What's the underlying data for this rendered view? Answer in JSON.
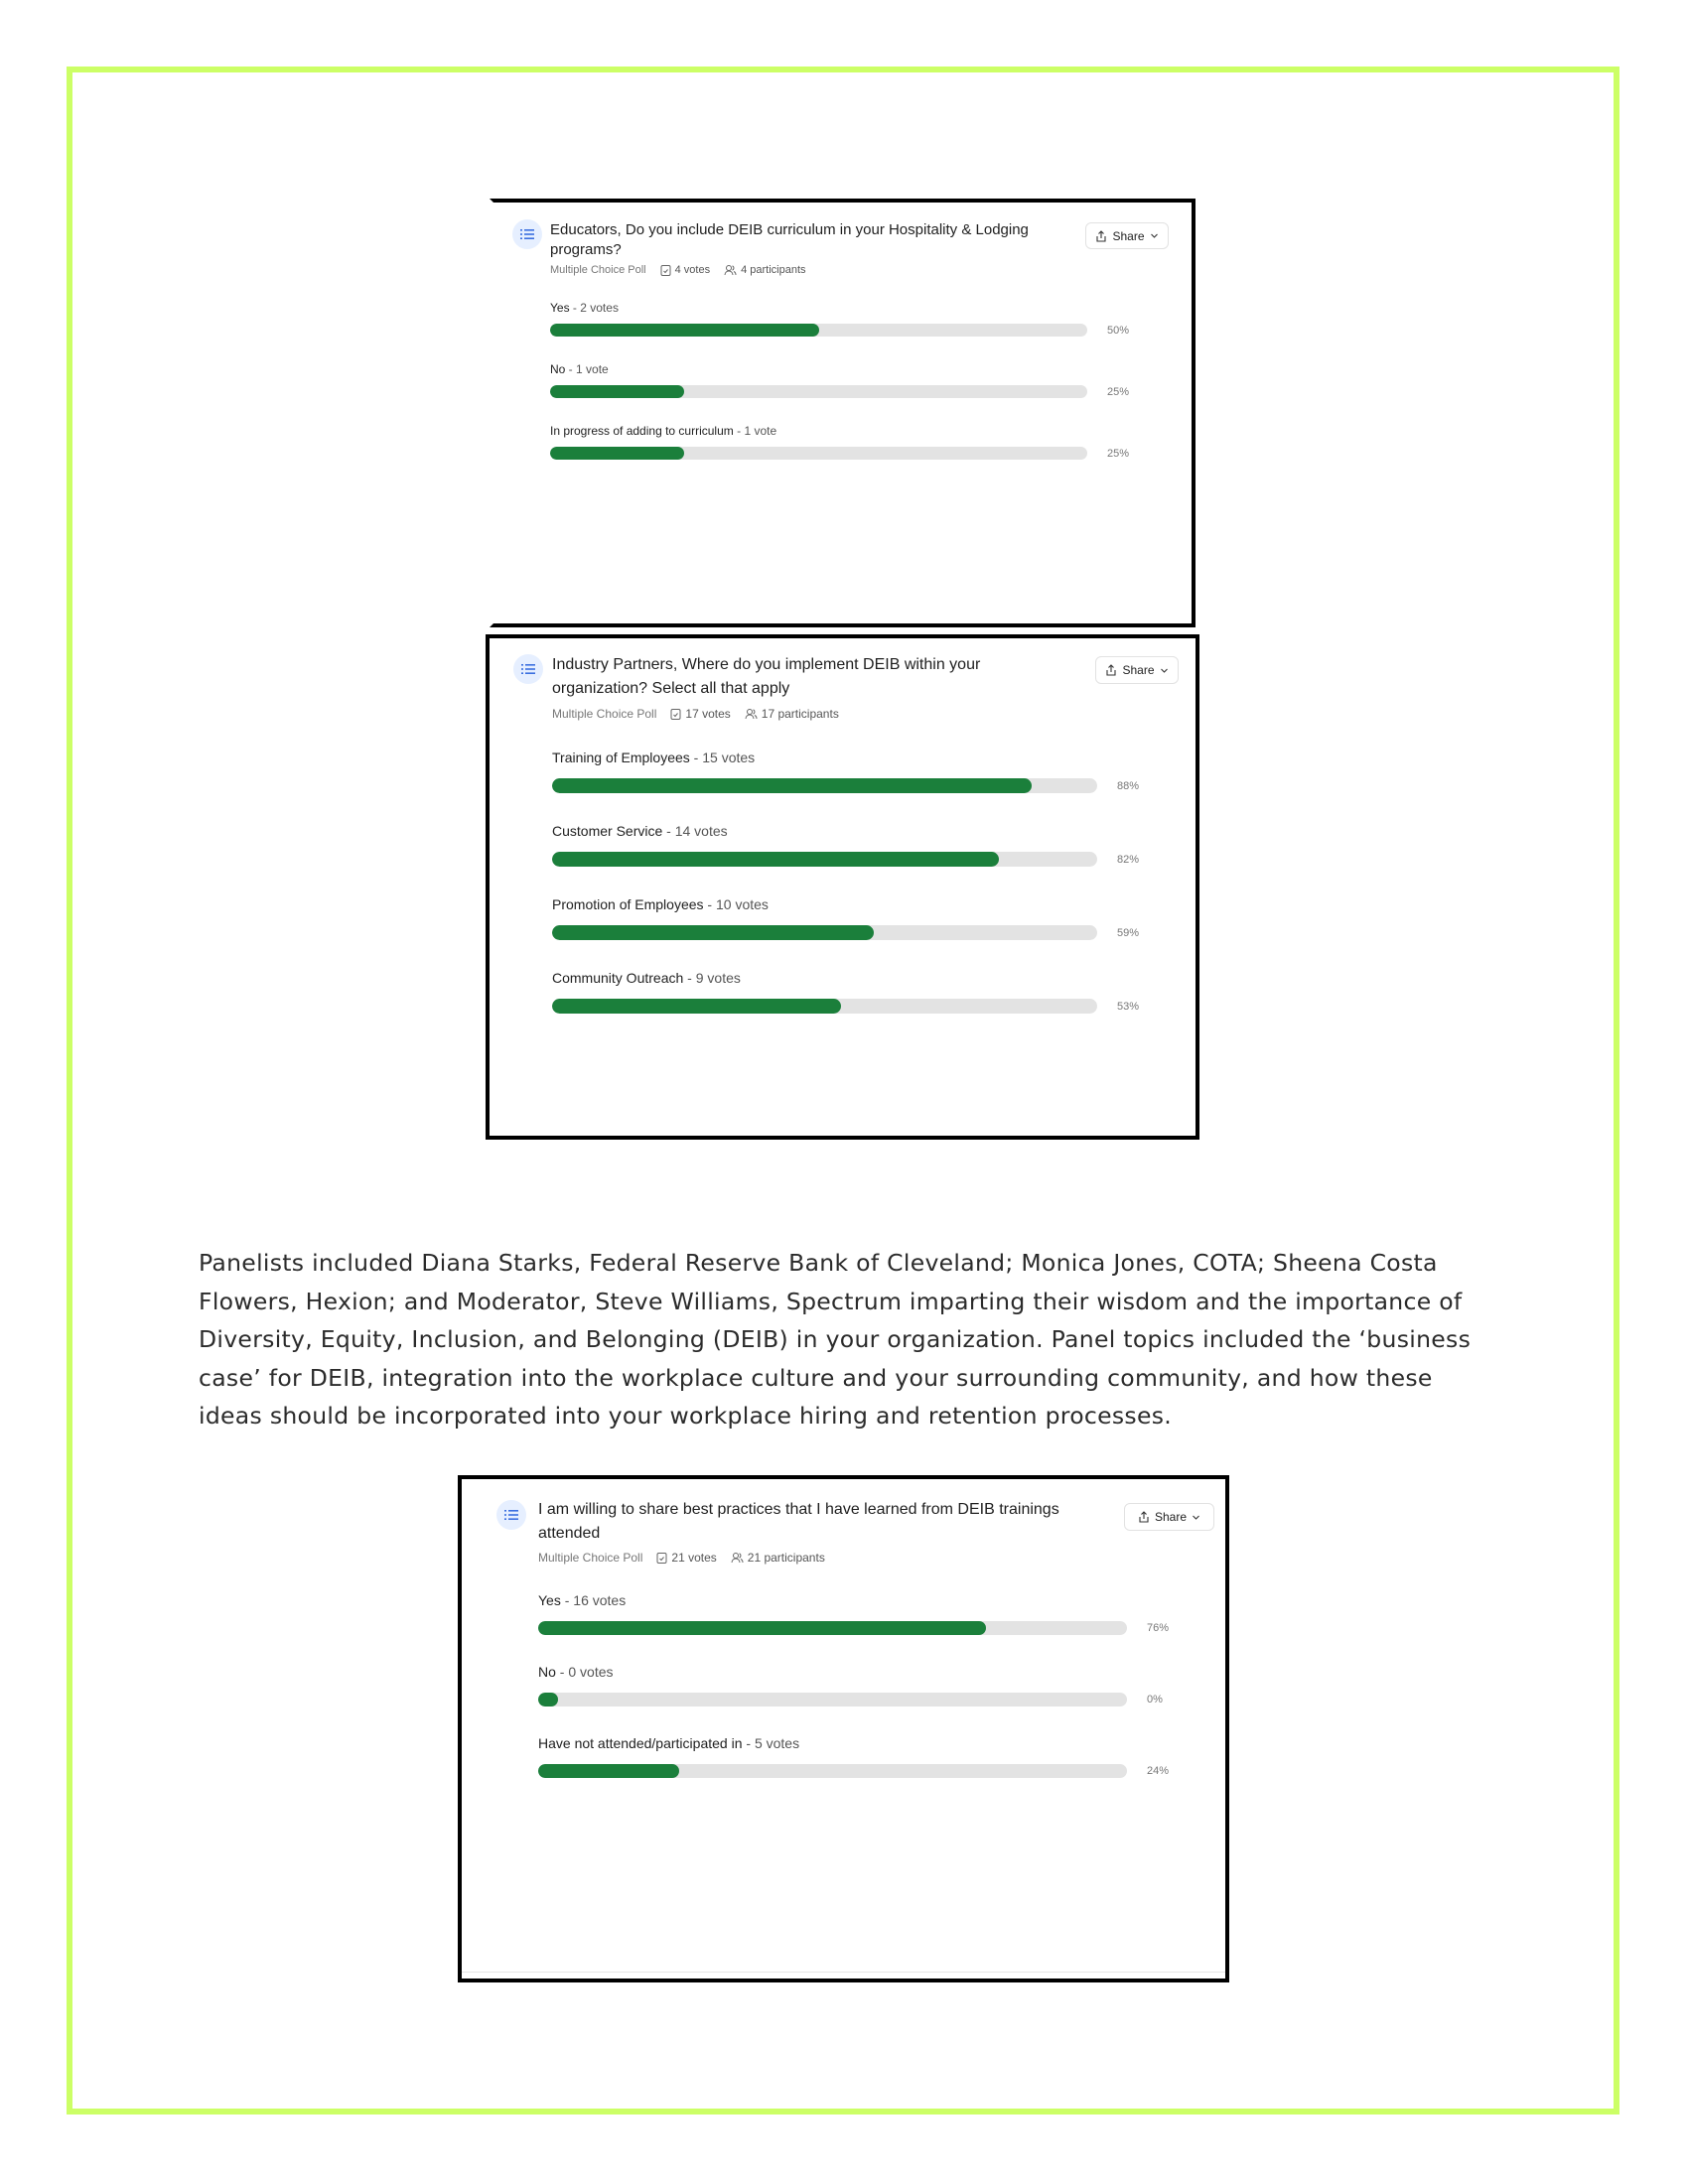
{
  "colors": {
    "frame": "#ccff66",
    "bar_fill": "#1b7f3b",
    "bar_track": "#e3e3e3",
    "icon_bg": "#e6efff",
    "icon": "#3b6fe0"
  },
  "polls": [
    {
      "title": "Educators, Do you include DEIB curriculum in your Hospitality & Lodging programs?",
      "type": "Multiple Choice Poll",
      "votes": "4 votes",
      "participants": "4 participants",
      "share_label": "Share",
      "options": [
        {
          "label": "Yes",
          "count": "2 votes",
          "percent": 50
        },
        {
          "label": "No",
          "count": "1 vote",
          "percent": 25
        },
        {
          "label": "In progress of adding to curriculum",
          "count": "1 vote",
          "percent": 25
        }
      ]
    },
    {
      "title": "Industry Partners, Where do you implement DEIB within your organization? Select all that apply",
      "type": "Multiple Choice Poll",
      "votes": "17 votes",
      "participants": "17 participants",
      "share_label": "Share",
      "options": [
        {
          "label": "Training of Employees",
          "count": "15 votes",
          "percent": 88
        },
        {
          "label": "Customer Service",
          "count": "14 votes",
          "percent": 82
        },
        {
          "label": "Promotion of Employees",
          "count": "10 votes",
          "percent": 59
        },
        {
          "label": "Community Outreach",
          "count": "9 votes",
          "percent": 53
        }
      ]
    },
    {
      "title": "I am willing to share best practices that I have learned from DEIB trainings attended",
      "type": "Multiple Choice Poll",
      "votes": "21 votes",
      "participants": "21 participants",
      "share_label": "Share",
      "options": [
        {
          "label": "Yes",
          "count": "16 votes",
          "percent": 76
        },
        {
          "label": "No",
          "count": "0 votes",
          "percent": 0
        },
        {
          "label": "Have not attended/participated in",
          "count": "5 votes",
          "percent": 24
        }
      ]
    }
  ],
  "paragraph": "Panelists included Diana Starks, Federal Reserve Bank of Cleveland; Monica Jones, COTA; Sheena Costa Flowers, Hexion; and Moderator, Steve Williams, Spectrum imparting their wisdom and the importance of Diversity, Equity, Inclusion, and Belonging (DEIB) in your organization. Panel topics included the ‘business case’ for DEIB, integration into the workplace culture and your surrounding community, and how these ideas should be incorporated into your workplace hiring and retention processes."
}
